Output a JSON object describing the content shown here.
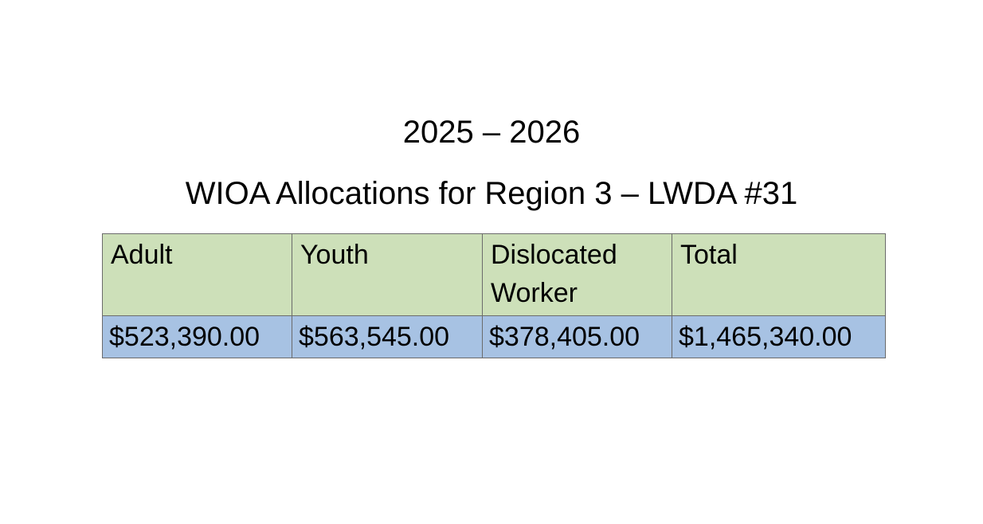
{
  "header": {
    "title": "2025 – 2026",
    "subtitle": "WIOA Allocations for Region 3 – LWDA #31"
  },
  "table": {
    "columns": [
      "Adult",
      "Youth",
      "Dislocated Worker",
      "Total"
    ],
    "rows": [
      [
        "$523,390.00",
        "$563,545.00",
        "$378,405.00",
        "$1,465,340.00"
      ]
    ]
  }
}
